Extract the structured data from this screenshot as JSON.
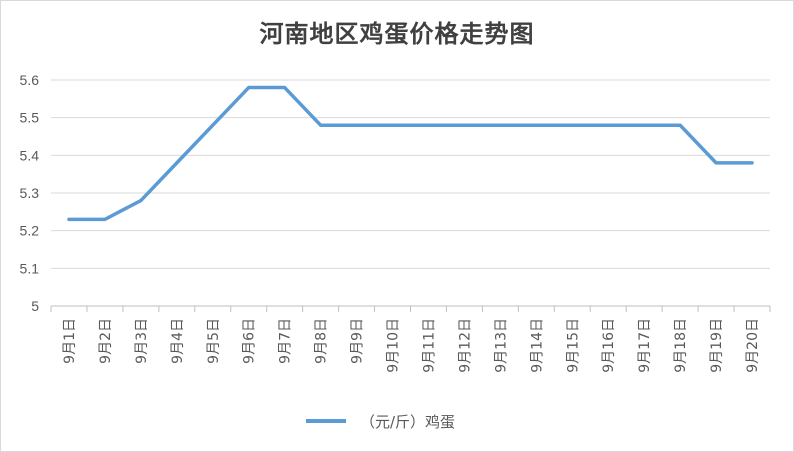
{
  "chart_data": {
    "type": "line",
    "title": "河南地区鸡蛋价格走势图",
    "categories": [
      "9月1日",
      "9月2日",
      "9月3日",
      "9月4日",
      "9月5日",
      "9月6日",
      "9月7日",
      "9月8日",
      "9月9日",
      "9月10日",
      "9月11日",
      "9月12日",
      "9月13日",
      "9月14日",
      "9月15日",
      "9月16日",
      "9月17日",
      "9月18日",
      "9月19日",
      "9月20日"
    ],
    "series": [
      {
        "name": "（元/斤）鸡蛋",
        "color": "#5b9bd5",
        "values": [
          5.23,
          5.23,
          5.28,
          5.38,
          5.48,
          5.58,
          5.58,
          5.48,
          5.48,
          5.48,
          5.48,
          5.48,
          5.48,
          5.48,
          5.48,
          5.48,
          5.48,
          5.48,
          5.38,
          5.38
        ]
      }
    ],
    "ylim": [
      5,
      5.6
    ],
    "yticks": [
      "5",
      "5.1",
      "5.2",
      "5.3",
      "5.4",
      "5.5",
      "5.6"
    ],
    "grid": true,
    "legend_position": "bottom",
    "xlabel": "",
    "ylabel": ""
  }
}
